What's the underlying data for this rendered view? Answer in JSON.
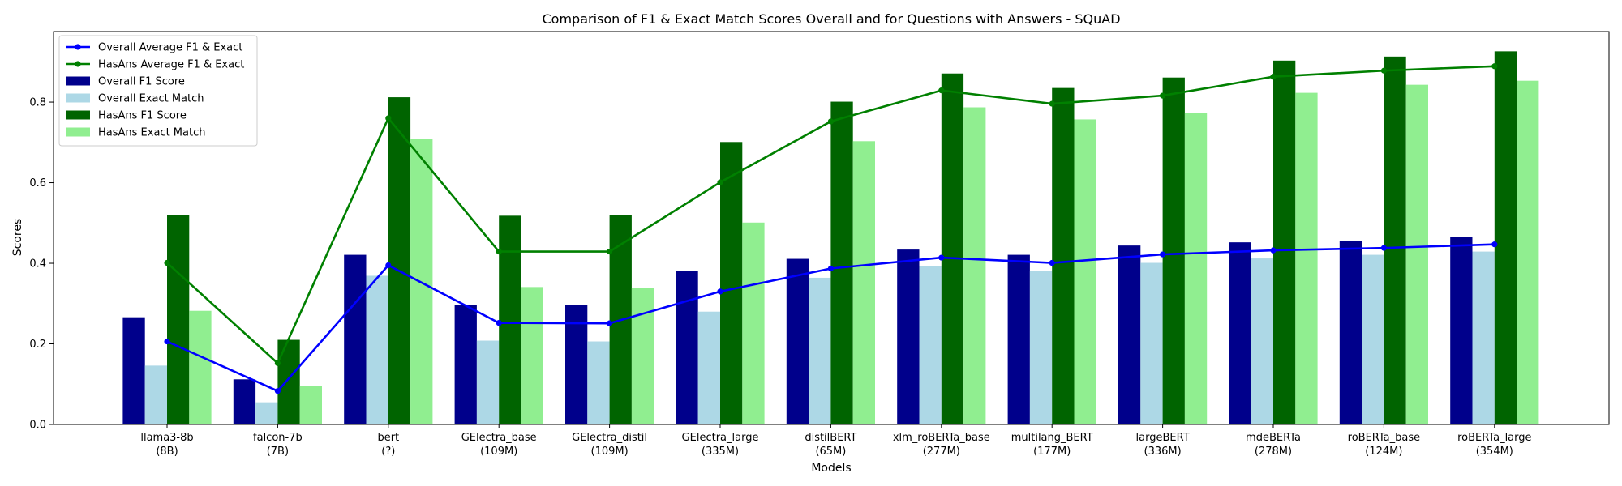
{
  "chart_data": {
    "type": "bar",
    "title": "Comparison of F1 & Exact Match Scores Overall and for Questions with Answers - SQuAD",
    "xlabel": "Models",
    "ylabel": "Scores",
    "ylim": [
      0,
      0.975
    ],
    "yticks": [
      "0.0",
      "0.2",
      "0.4",
      "0.6",
      "0.8"
    ],
    "grid": false,
    "legend_position": "upper-left",
    "categories": [
      [
        "llama3-8b",
        "(8B)"
      ],
      [
        "falcon-7b",
        "(7B)"
      ],
      [
        "bert",
        "(?)"
      ],
      [
        "GElectra_base",
        "(109M)"
      ],
      [
        "GElectra_distil",
        "(109M)"
      ],
      [
        "GElectra_large",
        "(335M)"
      ],
      [
        "distilBERT",
        "(65M)"
      ],
      [
        "xlm_roBERTa_base",
        "(277M)"
      ],
      [
        "multilang_BERT",
        "(177M)"
      ],
      [
        "largeBERT",
        "(336M)"
      ],
      [
        "mdeBERTa",
        "(278M)"
      ],
      [
        "roBERTa_base",
        "(124M)"
      ],
      [
        "roBERTa_large",
        "(354M)"
      ]
    ],
    "bar_series": [
      {
        "name": "Overall F1 Score",
        "color": "#00008b",
        "values": [
          0.266,
          0.112,
          0.421,
          0.296,
          0.296,
          0.381,
          0.411,
          0.434,
          0.421,
          0.444,
          0.452,
          0.456,
          0.466
        ]
      },
      {
        "name": "Overall Exact Match",
        "color": "#add8e6",
        "values": [
          0.146,
          0.055,
          0.369,
          0.208,
          0.206,
          0.28,
          0.364,
          0.394,
          0.381,
          0.401,
          0.412,
          0.421,
          0.429
        ]
      },
      {
        "name": "HasAns F1 Score",
        "color": "#006400",
        "values": [
          0.52,
          0.21,
          0.812,
          0.518,
          0.52,
          0.701,
          0.801,
          0.871,
          0.835,
          0.861,
          0.903,
          0.913,
          0.926
        ]
      },
      {
        "name": "HasAns Exact Match",
        "color": "#90ee90",
        "values": [
          0.282,
          0.095,
          0.709,
          0.341,
          0.338,
          0.501,
          0.703,
          0.787,
          0.757,
          0.772,
          0.823,
          0.843,
          0.853
        ]
      }
    ],
    "line_series": [
      {
        "name": "Overall Average F1 & Exact",
        "color": "#0000ff",
        "values": [
          0.206,
          0.083,
          0.395,
          0.252,
          0.251,
          0.33,
          0.387,
          0.414,
          0.401,
          0.422,
          0.432,
          0.438,
          0.447
        ]
      },
      {
        "name": "HasAns Average F1 & Exact",
        "color": "#008000",
        "values": [
          0.401,
          0.152,
          0.76,
          0.429,
          0.429,
          0.601,
          0.752,
          0.829,
          0.796,
          0.816,
          0.863,
          0.878,
          0.889
        ]
      }
    ],
    "legend_order": [
      {
        "name": "Overall Average F1 & Exact",
        "kind": "line",
        "color": "#0000ff"
      },
      {
        "name": "HasAns Average F1 & Exact",
        "kind": "line",
        "color": "#008000"
      },
      {
        "name": "Overall F1 Score",
        "kind": "bar",
        "color": "#00008b"
      },
      {
        "name": "Overall Exact Match",
        "kind": "bar",
        "color": "#add8e6"
      },
      {
        "name": "HasAns F1 Score",
        "kind": "bar",
        "color": "#006400"
      },
      {
        "name": "HasAns Exact Match",
        "kind": "bar",
        "color": "#90ee90"
      }
    ]
  }
}
